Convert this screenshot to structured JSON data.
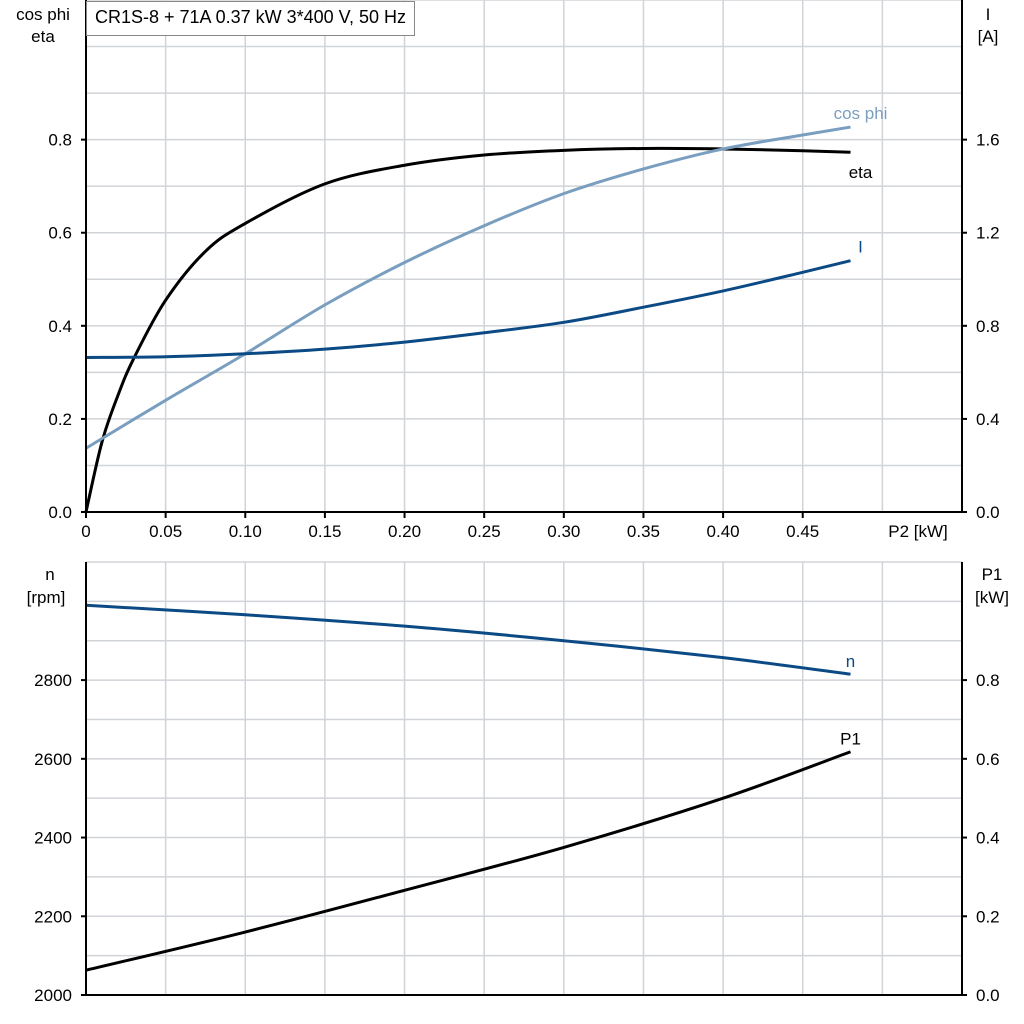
{
  "title": "CR1S-8 + 71A   0.37 kW   3*400 V, 50 Hz",
  "colors": {
    "eta": "#000000",
    "cos_phi": "#7a9ebf",
    "I": "#0b4a84",
    "n": "#0b4a84",
    "P1": "#000000",
    "grid": "#d0d3d8"
  },
  "chart_data": [
    {
      "type": "line",
      "xlabel": "P2 [kW]",
      "ylabel_left": [
        "cos phi",
        "eta"
      ],
      "ylabel_right": [
        "I",
        "[A]"
      ],
      "xlim": [
        0,
        0.55
      ],
      "ylim_left": [
        0,
        1.1
      ],
      "ylim_right": [
        0,
        2.2
      ],
      "grid": true,
      "x_ticks": [
        "0",
        "0.05",
        "0.10",
        "0.15",
        "0.20",
        "0.25",
        "0.30",
        "0.35",
        "0.40",
        "0.45"
      ],
      "y_left_ticks": [
        "0.0",
        "0.2",
        "0.4",
        "0.6",
        "0.8"
      ],
      "y_right_ticks": [
        "0.0",
        "0.4",
        "0.8",
        "1.2",
        "1.6"
      ],
      "series": [
        {
          "name": "eta",
          "axis": "left",
          "x": [
            0,
            0.01,
            0.02,
            0.03,
            0.05,
            0.075,
            0.1,
            0.15,
            0.2,
            0.25,
            0.3,
            0.35,
            0.4,
            0.45,
            0.48
          ],
          "y": [
            0,
            0.15,
            0.25,
            0.33,
            0.455,
            0.56,
            0.62,
            0.705,
            0.745,
            0.767,
            0.777,
            0.781,
            0.78,
            0.776,
            0.773
          ]
        },
        {
          "name": "cos phi",
          "axis": "left",
          "x": [
            0,
            0.05,
            0.1,
            0.15,
            0.2,
            0.25,
            0.3,
            0.35,
            0.4,
            0.45,
            0.48
          ],
          "y": [
            0.137,
            0.24,
            0.34,
            0.445,
            0.536,
            0.615,
            0.684,
            0.737,
            0.78,
            0.81,
            0.827
          ]
        },
        {
          "name": "I",
          "axis": "right",
          "x": [
            0,
            0.05,
            0.1,
            0.15,
            0.2,
            0.25,
            0.3,
            0.35,
            0.4,
            0.45,
            0.48
          ],
          "y": [
            0.664,
            0.667,
            0.68,
            0.7,
            0.73,
            0.77,
            0.815,
            0.88,
            0.95,
            1.03,
            1.08
          ]
        }
      ]
    },
    {
      "type": "line",
      "xlabel": "",
      "ylabel_left": [
        "n",
        "[rpm]"
      ],
      "ylabel_right": [
        "P1",
        "[kW]"
      ],
      "xlim": [
        0,
        0.55
      ],
      "ylim_left": [
        2000,
        3100
      ],
      "ylim_right": [
        0,
        1.1
      ],
      "grid": true,
      "y_left_ticks": [
        "2000",
        "2200",
        "2400",
        "2600",
        "2800"
      ],
      "y_right_ticks": [
        "0.0",
        "0.2",
        "0.4",
        "0.6",
        "0.8"
      ],
      "series": [
        {
          "name": "n",
          "axis": "left",
          "x": [
            0,
            0.1,
            0.2,
            0.3,
            0.4,
            0.48
          ],
          "y": [
            2990,
            2966,
            2937,
            2900,
            2857,
            2815
          ]
        },
        {
          "name": "P1",
          "axis": "right",
          "x": [
            0,
            0.1,
            0.2,
            0.3,
            0.4,
            0.48
          ],
          "y": [
            0.063,
            0.16,
            0.266,
            0.375,
            0.5,
            0.618
          ]
        }
      ]
    }
  ]
}
